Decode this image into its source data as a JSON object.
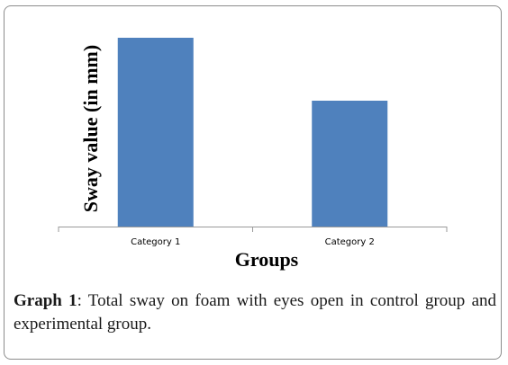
{
  "chart_data": {
    "type": "bar",
    "categories": [
      "Category 1",
      "Category 2"
    ],
    "values": [
      4.2,
      2.8
    ],
    "ylabel": "Sway value (in mm)",
    "xlabel": "Groups",
    "ylim": [
      0,
      4.5
    ],
    "grid": false,
    "legend": "none",
    "bar_color": "#4f81bd",
    "axis_color": "#9a9a9a"
  },
  "caption": {
    "label": "Graph 1",
    "text": ": Total sway on foam with eyes open in control group and experimental group."
  }
}
